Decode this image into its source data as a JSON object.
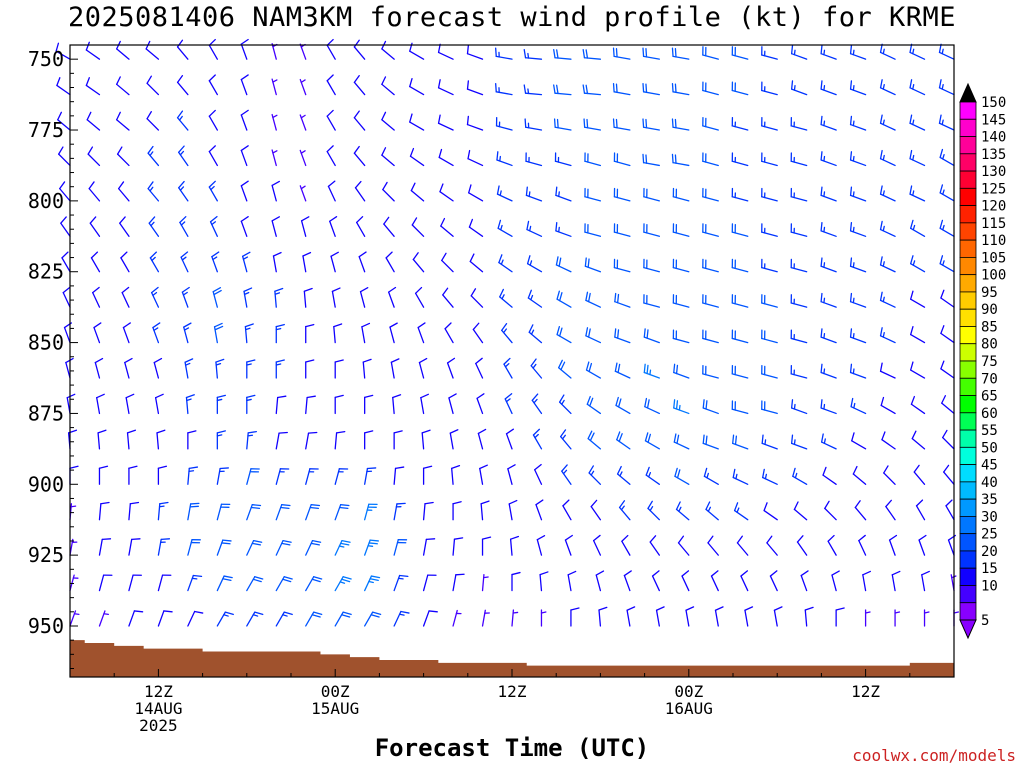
{
  "chart_data": {
    "type": "wind-barb time-height",
    "title": "2025081406 NAM3KM forecast wind profile (kt) for KRME",
    "xlabel": "Forecast Time (UTC)",
    "credit": "coolwx.com/models",
    "y_ticks": [
      "750",
      "775",
      "800",
      "825",
      "850",
      "875",
      "900",
      "925",
      "950"
    ],
    "y_tick_values": [
      750,
      775,
      800,
      825,
      850,
      875,
      900,
      925,
      950
    ],
    "ylim": [
      745,
      968
    ],
    "pressure_levels": [
      750,
      762.5,
      775,
      787.5,
      800,
      812.5,
      825,
      837.5,
      850,
      862.5,
      875,
      887.5,
      900,
      912.5,
      925,
      937.5,
      950
    ],
    "x_ticks": [
      {
        "hour": 12,
        "lines": [
          "12Z",
          "14AUG",
          "2025"
        ]
      },
      {
        "hour": 24,
        "lines": [
          "00Z",
          "15AUG"
        ]
      },
      {
        "hour": 36,
        "lines": [
          "12Z"
        ]
      },
      {
        "hour": 48,
        "lines": [
          "00Z",
          "16AUG"
        ]
      },
      {
        "hour": 60,
        "lines": [
          "12Z"
        ]
      }
    ],
    "xlim": [
      6,
      66
    ],
    "forecast_hours": [
      6,
      8,
      10,
      12,
      14,
      16,
      18,
      20,
      22,
      24,
      26,
      28,
      30,
      32,
      34,
      36,
      38,
      40,
      42,
      44,
      46,
      48,
      50,
      52,
      54,
      56,
      58,
      60,
      62,
      64,
      66
    ],
    "surface_pressure": [
      955,
      956,
      957,
      958,
      958,
      959,
      959,
      959,
      959,
      960,
      961,
      962,
      962,
      963,
      963,
      963,
      964,
      964,
      964,
      964,
      964,
      964,
      964,
      964,
      964,
      964,
      964,
      964,
      964,
      963,
      963
    ],
    "terrain_color": "#a0522d",
    "colorbar": {
      "labels": [
        "150",
        "145",
        "140",
        "135",
        "130",
        "125",
        "120",
        "115",
        "110",
        "105",
        "100",
        "95",
        "90",
        "85",
        "80",
        "75",
        "70",
        "65",
        "60",
        "55",
        "50",
        "45",
        "40",
        "35",
        "30",
        "25",
        "20",
        "15",
        "10",
        "5"
      ],
      "colors": [
        "#ff00ff",
        "#ff00cc",
        "#ff0099",
        "#ff0066",
        "#ff0033",
        "#ff0000",
        "#ff2200",
        "#ff4400",
        "#ff6600",
        "#ff8800",
        "#ffaa00",
        "#ffcc00",
        "#ffe000",
        "#ffff00",
        "#ccff00",
        "#88ff00",
        "#44ff00",
        "#00ff00",
        "#00ff55",
        "#00ffaa",
        "#00ffdd",
        "#00ddff",
        "#00bbff",
        "#0099ff",
        "#0077ff",
        "#0055ff",
        "#0033ff",
        "#1100ff",
        "#4400ff",
        "#8800ff"
      ]
    },
    "wind_dir_deg": [
      [
        300,
        305,
        310,
        310,
        320,
        330,
        340,
        345,
        340,
        330,
        320,
        310,
        300,
        295,
        290,
        280,
        275,
        275,
        275,
        280,
        280,
        280,
        285,
        285,
        285,
        290,
        290,
        290,
        295,
        295,
        295
      ],
      [
        305,
        305,
        310,
        315,
        320,
        330,
        340,
        345,
        340,
        330,
        320,
        310,
        300,
        295,
        290,
        280,
        275,
        275,
        275,
        280,
        280,
        280,
        285,
        285,
        285,
        290,
        290,
        290,
        295,
        295,
        295
      ],
      [
        310,
        310,
        310,
        315,
        320,
        330,
        340,
        345,
        340,
        330,
        320,
        310,
        300,
        295,
        290,
        285,
        280,
        280,
        280,
        280,
        280,
        280,
        285,
        285,
        285,
        285,
        290,
        290,
        295,
        295,
        295
      ],
      [
        315,
        315,
        315,
        320,
        325,
        330,
        340,
        345,
        340,
        330,
        320,
        310,
        305,
        300,
        295,
        290,
        285,
        285,
        285,
        285,
        280,
        280,
        285,
        285,
        285,
        285,
        290,
        290,
        295,
        295,
        300
      ],
      [
        320,
        320,
        320,
        320,
        325,
        330,
        340,
        345,
        340,
        335,
        325,
        315,
        310,
        305,
        300,
        295,
        290,
        290,
        285,
        285,
        285,
        285,
        285,
        285,
        285,
        285,
        290,
        290,
        295,
        295,
        300
      ],
      [
        325,
        325,
        325,
        325,
        330,
        335,
        340,
        345,
        345,
        340,
        330,
        320,
        315,
        310,
        305,
        300,
        295,
        290,
        285,
        285,
        285,
        285,
        285,
        285,
        285,
        285,
        290,
        290,
        295,
        300,
        300
      ],
      [
        330,
        330,
        330,
        330,
        335,
        340,
        345,
        350,
        350,
        345,
        340,
        330,
        320,
        315,
        310,
        305,
        300,
        295,
        290,
        285,
        285,
        285,
        285,
        285,
        285,
        285,
        290,
        290,
        295,
        300,
        300
      ],
      [
        335,
        335,
        335,
        335,
        340,
        345,
        350,
        355,
        355,
        350,
        345,
        340,
        330,
        320,
        315,
        310,
        305,
        300,
        295,
        290,
        285,
        285,
        285,
        285,
        285,
        285,
        290,
        290,
        295,
        300,
        305
      ],
      [
        340,
        340,
        340,
        340,
        345,
        350,
        355,
        360,
        360,
        355,
        350,
        345,
        340,
        330,
        325,
        320,
        310,
        300,
        295,
        290,
        290,
        285,
        285,
        285,
        285,
        285,
        290,
        290,
        295,
        300,
        305
      ],
      [
        345,
        345,
        345,
        345,
        350,
        355,
        360,
        360,
        360,
        360,
        355,
        350,
        345,
        340,
        335,
        330,
        320,
        310,
        300,
        295,
        290,
        290,
        285,
        285,
        285,
        285,
        290,
        290,
        295,
        300,
        305
      ],
      [
        350,
        350,
        350,
        350,
        355,
        360,
        360,
        5,
        5,
        360,
        360,
        355,
        350,
        345,
        340,
        335,
        325,
        315,
        305,
        300,
        295,
        290,
        290,
        285,
        285,
        290,
        290,
        295,
        300,
        305,
        310
      ],
      [
        355,
        355,
        355,
        355,
        360,
        360,
        5,
        10,
        10,
        5,
        360,
        360,
        355,
        350,
        345,
        340,
        330,
        320,
        310,
        305,
        300,
        295,
        290,
        290,
        290,
        290,
        295,
        300,
        305,
        310,
        315
      ],
      [
        360,
        360,
        360,
        360,
        5,
        10,
        15,
        15,
        15,
        15,
        10,
        5,
        360,
        355,
        350,
        345,
        335,
        325,
        315,
        310,
        305,
        300,
        300,
        295,
        295,
        300,
        305,
        310,
        315,
        320,
        320
      ],
      [
        5,
        5,
        5,
        5,
        10,
        15,
        20,
        20,
        20,
        20,
        15,
        10,
        5,
        360,
        355,
        350,
        340,
        330,
        325,
        320,
        315,
        310,
        310,
        305,
        305,
        310,
        315,
        320,
        325,
        330,
        330
      ],
      [
        10,
        10,
        10,
        10,
        15,
        20,
        25,
        25,
        25,
        25,
        20,
        15,
        10,
        5,
        360,
        355,
        345,
        340,
        335,
        330,
        325,
        320,
        320,
        320,
        320,
        325,
        330,
        335,
        340,
        340,
        340
      ],
      [
        15,
        15,
        15,
        15,
        20,
        25,
        30,
        30,
        30,
        30,
        25,
        20,
        15,
        10,
        5,
        360,
        355,
        350,
        345,
        340,
        335,
        335,
        335,
        335,
        335,
        340,
        345,
        350,
        350,
        350,
        350
      ],
      [
        20,
        20,
        20,
        20,
        25,
        30,
        30,
        30,
        30,
        30,
        30,
        25,
        20,
        15,
        10,
        5,
        360,
        360,
        355,
        350,
        350,
        350,
        350,
        350,
        350,
        355,
        360,
        360,
        360,
        360,
        360
      ]
    ],
    "wind_speed_kt": [
      [
        10,
        10,
        12,
        12,
        12,
        10,
        8,
        6,
        6,
        8,
        8,
        10,
        10,
        12,
        12,
        14,
        16,
        18,
        20,
        20,
        20,
        18,
        18,
        18,
        16,
        16,
        16,
        16,
        14,
        14,
        14
      ],
      [
        10,
        10,
        12,
        12,
        12,
        10,
        8,
        6,
        6,
        8,
        8,
        10,
        10,
        12,
        12,
        14,
        16,
        18,
        20,
        20,
        20,
        18,
        18,
        18,
        16,
        16,
        16,
        16,
        14,
        14,
        14
      ],
      [
        10,
        10,
        12,
        12,
        14,
        12,
        8,
        6,
        6,
        8,
        8,
        10,
        10,
        12,
        12,
        14,
        16,
        18,
        18,
        18,
        18,
        18,
        18,
        16,
        16,
        16,
        16,
        14,
        14,
        14,
        14
      ],
      [
        10,
        10,
        12,
        14,
        14,
        12,
        10,
        6,
        6,
        8,
        8,
        10,
        10,
        12,
        12,
        14,
        16,
        16,
        18,
        18,
        18,
        18,
        18,
        16,
        16,
        16,
        16,
        14,
        14,
        14,
        14
      ],
      [
        10,
        10,
        12,
        14,
        16,
        14,
        10,
        8,
        6,
        8,
        8,
        10,
        10,
        12,
        12,
        14,
        16,
        16,
        18,
        18,
        18,
        18,
        18,
        16,
        16,
        16,
        16,
        14,
        14,
        14,
        14
      ],
      [
        10,
        10,
        12,
        14,
        16,
        16,
        12,
        10,
        8,
        8,
        8,
        10,
        10,
        12,
        12,
        14,
        16,
        16,
        18,
        18,
        18,
        18,
        18,
        18,
        16,
        16,
        16,
        14,
        14,
        14,
        14
      ],
      [
        10,
        10,
        12,
        14,
        16,
        16,
        14,
        12,
        10,
        8,
        8,
        10,
        10,
        12,
        12,
        14,
        16,
        18,
        18,
        20,
        20,
        20,
        18,
        18,
        16,
        16,
        16,
        14,
        14,
        14,
        14
      ],
      [
        10,
        10,
        12,
        14,
        16,
        18,
        16,
        14,
        10,
        8,
        8,
        10,
        10,
        12,
        12,
        14,
        16,
        18,
        20,
        20,
        22,
        20,
        20,
        18,
        18,
        16,
        16,
        14,
        14,
        12,
        12
      ],
      [
        8,
        10,
        12,
        14,
        16,
        18,
        16,
        14,
        10,
        8,
        8,
        10,
        10,
        12,
        12,
        14,
        16,
        18,
        20,
        22,
        22,
        22,
        20,
        20,
        18,
        16,
        16,
        14,
        14,
        12,
        12
      ],
      [
        8,
        10,
        10,
        12,
        14,
        16,
        16,
        14,
        10,
        8,
        8,
        10,
        10,
        10,
        12,
        14,
        16,
        18,
        20,
        22,
        24,
        22,
        22,
        20,
        18,
        16,
        16,
        14,
        12,
        12,
        12
      ],
      [
        8,
        8,
        10,
        12,
        14,
        14,
        14,
        12,
        10,
        8,
        8,
        10,
        10,
        10,
        12,
        14,
        14,
        16,
        18,
        20,
        22,
        24,
        22,
        20,
        18,
        16,
        14,
        14,
        12,
        12,
        10
      ],
      [
        8,
        8,
        10,
        12,
        12,
        14,
        14,
        12,
        10,
        10,
        10,
        10,
        10,
        10,
        10,
        12,
        14,
        16,
        18,
        18,
        20,
        22,
        20,
        18,
        16,
        14,
        14,
        12,
        12,
        10,
        10
      ],
      [
        8,
        8,
        10,
        12,
        14,
        16,
        18,
        16,
        14,
        14,
        14,
        12,
        10,
        10,
        10,
        12,
        12,
        14,
        14,
        16,
        16,
        18,
        16,
        16,
        14,
        14,
        12,
        12,
        10,
        10,
        10
      ],
      [
        6,
        8,
        10,
        14,
        18,
        22,
        22,
        20,
        20,
        22,
        24,
        16,
        10,
        8,
        8,
        10,
        10,
        12,
        12,
        14,
        14,
        14,
        14,
        14,
        12,
        12,
        12,
        10,
        10,
        10,
        8
      ],
      [
        6,
        8,
        10,
        14,
        18,
        22,
        22,
        20,
        22,
        24,
        26,
        18,
        10,
        8,
        8,
        8,
        10,
        10,
        10,
        12,
        12,
        12,
        12,
        12,
        12,
        10,
        10,
        10,
        10,
        8,
        8
      ],
      [
        6,
        8,
        10,
        12,
        16,
        18,
        20,
        18,
        20,
        24,
        24,
        16,
        10,
        8,
        6,
        8,
        8,
        8,
        10,
        10,
        10,
        10,
        10,
        10,
        10,
        10,
        10,
        8,
        8,
        8,
        6
      ],
      [
        4,
        6,
        8,
        10,
        12,
        14,
        16,
        16,
        18,
        20,
        20,
        14,
        8,
        6,
        6,
        6,
        6,
        8,
        8,
        8,
        8,
        8,
        8,
        8,
        8,
        8,
        8,
        6,
        6,
        6,
        6
      ]
    ]
  }
}
